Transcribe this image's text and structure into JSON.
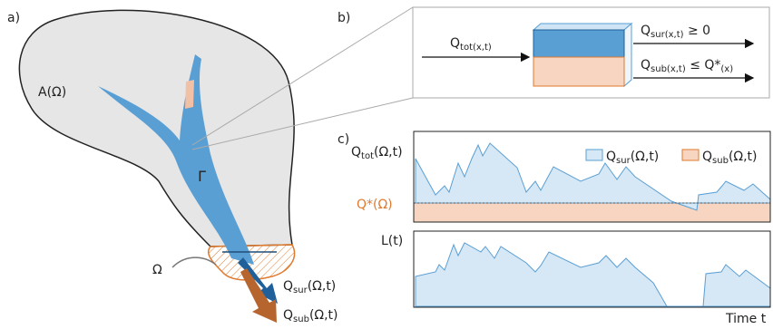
{
  "panel_a": {
    "label": "a)",
    "area": "A(Ω)",
    "river": "Γ",
    "outlet": "Ω",
    "q_sur": {
      "main": "Q",
      "sub": "sur",
      "rest": "(Ω,t)"
    },
    "q_sub": {
      "main": "Q",
      "sub": "sub",
      "rest": "(Ω,t)"
    }
  },
  "panel_b": {
    "label": "b)",
    "q_tot": {
      "main": "Q",
      "sub": "tot(x,t)"
    },
    "q_sur": {
      "main": "Q",
      "sub": "sur(x,t)",
      "rest": " ≥ 0"
    },
    "q_sub": {
      "main": "Q",
      "sub": "sub(x,t)",
      "rest": " ≤ Q*",
      "sub2": "(x)"
    }
  },
  "panel_c": {
    "label": "c)",
    "q_tot": {
      "main": "Q",
      "sub": "tot",
      "rest": "(Ω,t)"
    },
    "legend_sur": {
      "main": "Q",
      "sub": "sur",
      "rest": "(Ω,t)"
    },
    "legend_sub": {
      "main": "Q",
      "sub": "sub",
      "rest": "(Ω,t)"
    },
    "q_star": "Q*(Ω)",
    "storage": "L(t)",
    "x_label": "Time t"
  }
}
